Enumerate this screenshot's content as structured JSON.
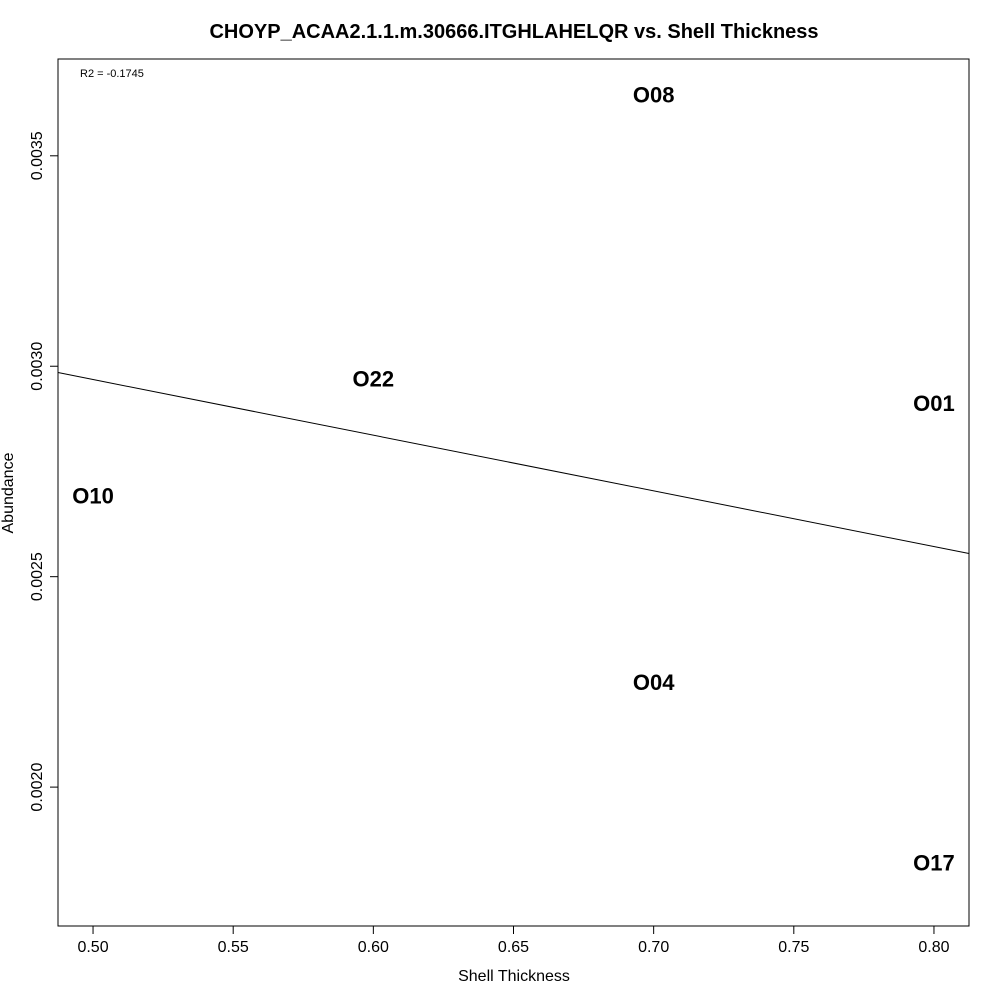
{
  "chart_data": {
    "type": "scatter",
    "title": "CHOYP_ACAA2.1.1.m.30666.ITGHLAHELQR vs. Shell Thickness",
    "xlabel": "Shell Thickness",
    "ylabel": "Abundance",
    "xlim": [
      0.4875,
      0.8125
    ],
    "ylim": [
      0.00167,
      0.00373
    ],
    "x_ticks": [
      0.5,
      0.55,
      0.6,
      0.65,
      0.7,
      0.75,
      0.8
    ],
    "x_tick_labels": [
      "0.50",
      "0.55",
      "0.60",
      "0.65",
      "0.70",
      "0.75",
      "0.80"
    ],
    "y_ticks": [
      0.002,
      0.0025,
      0.003,
      0.0035
    ],
    "y_tick_labels": [
      "0.0020",
      "0.0025",
      "0.0030",
      "0.0035"
    ],
    "points": [
      {
        "label": "O08",
        "x": 0.7,
        "y": 0.003645
      },
      {
        "label": "O22",
        "x": 0.6,
        "y": 0.00297
      },
      {
        "label": "O01",
        "x": 0.8,
        "y": 0.002912
      },
      {
        "label": "O10",
        "x": 0.5,
        "y": 0.002692
      },
      {
        "label": "O04",
        "x": 0.7,
        "y": 0.002248
      },
      {
        "label": "O17",
        "x": 0.8,
        "y": 0.00182
      }
    ],
    "fit_line": {
      "x": [
        0.4875,
        0.8125
      ],
      "y": [
        0.002985,
        0.002555
      ]
    },
    "annotation": "R2 = -0.1745",
    "grid": false,
    "legend": "none"
  }
}
